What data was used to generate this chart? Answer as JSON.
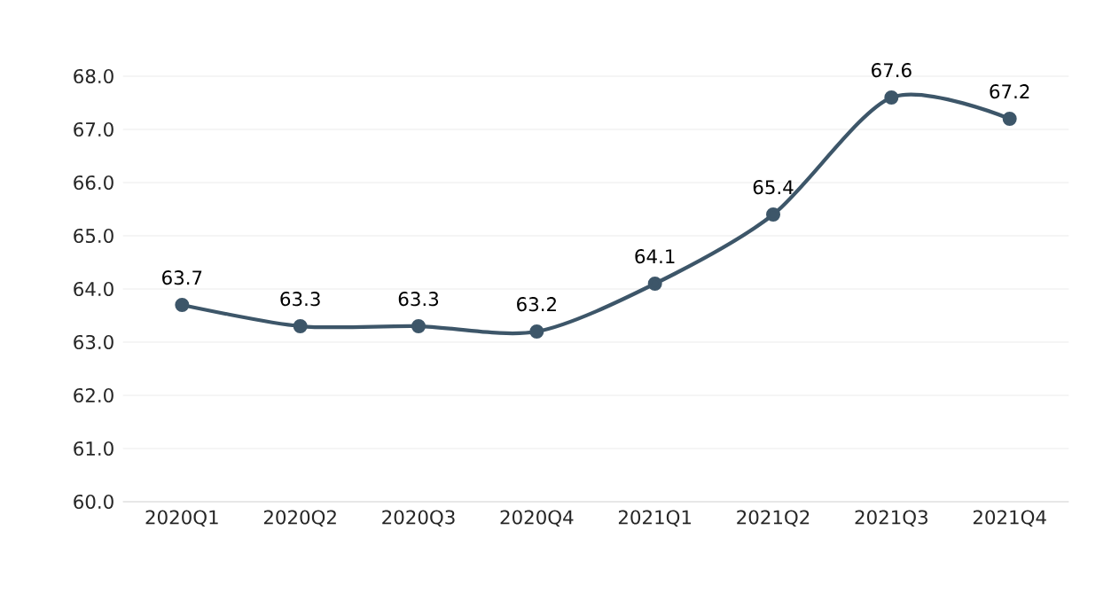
{
  "chart_data": {
    "type": "line",
    "categories": [
      "2020Q1",
      "2020Q2",
      "2020Q3",
      "2020Q4",
      "2021Q1",
      "2021Q2",
      "2021Q3",
      "2021Q4"
    ],
    "values": [
      63.7,
      63.3,
      63.3,
      63.2,
      64.1,
      65.4,
      67.6,
      67.2
    ],
    "color": "#3d5669",
    "marker": "circle",
    "line_style": "solid",
    "data_labels": true,
    "grid": "y",
    "ylim": [
      60,
      68
    ],
    "yticks": [
      {
        "value": 60,
        "label": "60.0"
      },
      {
        "value": 61,
        "label": "61.0"
      },
      {
        "value": 62,
        "label": "62.0"
      },
      {
        "value": 63,
        "label": "63.0"
      },
      {
        "value": 64,
        "label": "64.0"
      },
      {
        "value": 65,
        "label": "65.0"
      },
      {
        "value": 66,
        "label": "66.0"
      },
      {
        "value": 67,
        "label": "67.0"
      },
      {
        "value": 68,
        "label": "68.0"
      }
    ]
  }
}
